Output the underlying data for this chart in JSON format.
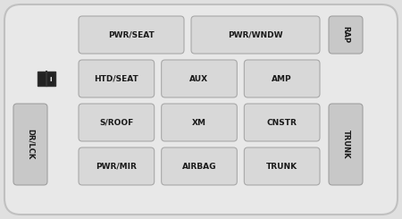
{
  "bg_color": "#e0e0e0",
  "panel_bg": "#d4d4d4",
  "panel_border": "#b0b0b0",
  "fuse_face": "#d8d8d8",
  "fuse_border": "#a8a8a8",
  "fuse_text": "#1a1a1a",
  "side_face": "#c8c8c8",
  "side_border": "#a0a0a0",
  "fuses_row1": [
    "PWR/SEAT",
    "PWR/WNDW"
  ],
  "fuses_row2": [
    "HTD/SEAT",
    "AUX",
    "AMP"
  ],
  "fuses_row3": [
    "S/ROOF",
    "XM",
    "CNSTR"
  ],
  "fuses_row4": [
    "PWR/MIR",
    "AIRBAG",
    "TRUNK"
  ],
  "label_rap": "RAP",
  "label_trunk": "TRUNK",
  "label_drlck": "DR/LCK",
  "fontsize": 6.5,
  "side_fontsize": 6.0
}
